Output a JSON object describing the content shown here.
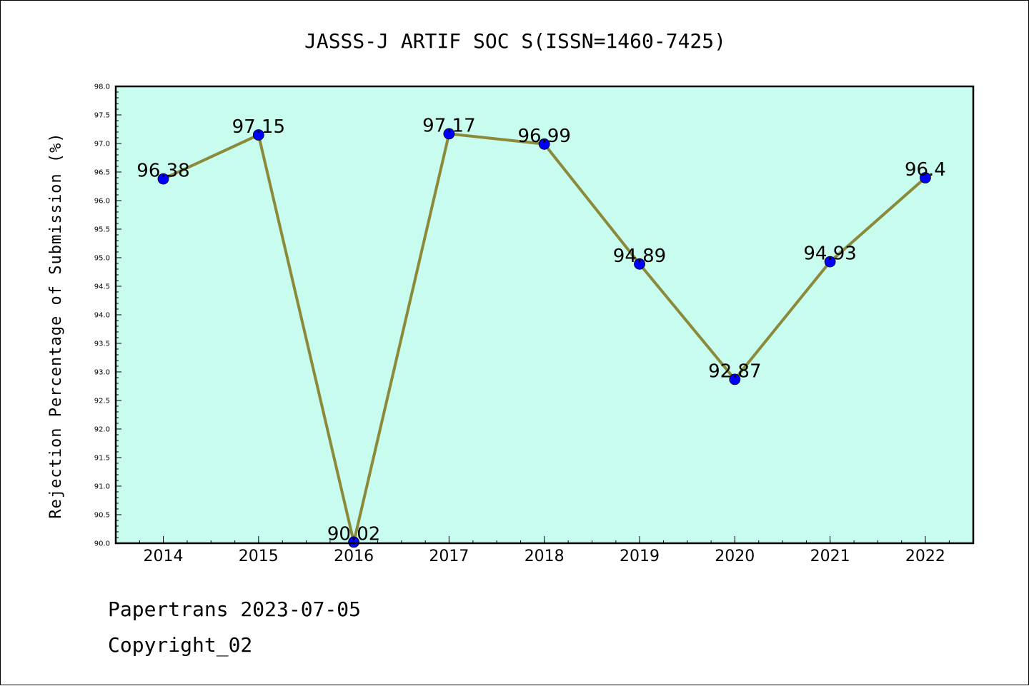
{
  "chart_data": {
    "type": "line",
    "title": "JASSS-J ARTIF SOC S(ISSN=1460-7425)",
    "ylabel": "Rejection Percentage of Submission (%)",
    "xlabel": "",
    "categories": [
      "2014",
      "2015",
      "2016",
      "2017",
      "2018",
      "2019",
      "2020",
      "2021",
      "2022"
    ],
    "values": [
      96.38,
      97.15,
      90.02,
      97.17,
      96.99,
      94.89,
      92.87,
      94.93,
      96.4
    ],
    "data_labels": [
      "96.38",
      "97.15",
      "90.02",
      "97.17",
      "96.99",
      "94.89",
      "92.87",
      "94.93",
      "96.4"
    ],
    "ylim": [
      90.0,
      98.0
    ],
    "yticks": [
      "90.0",
      "90.5",
      "91.0",
      "91.5",
      "92.0",
      "92.5",
      "93.0",
      "93.5",
      "94.0",
      "94.5",
      "95.0",
      "95.5",
      "96.0",
      "96.5",
      "97.0",
      "97.5",
      "98.0"
    ],
    "grid": false,
    "colors": {
      "plot_bg": "#c8fcee",
      "line": "#8b8a3a",
      "marker": "#0000ff"
    }
  },
  "footer": {
    "line1": "Papertrans 2023-07-05",
    "line2": "Copyright_02"
  }
}
